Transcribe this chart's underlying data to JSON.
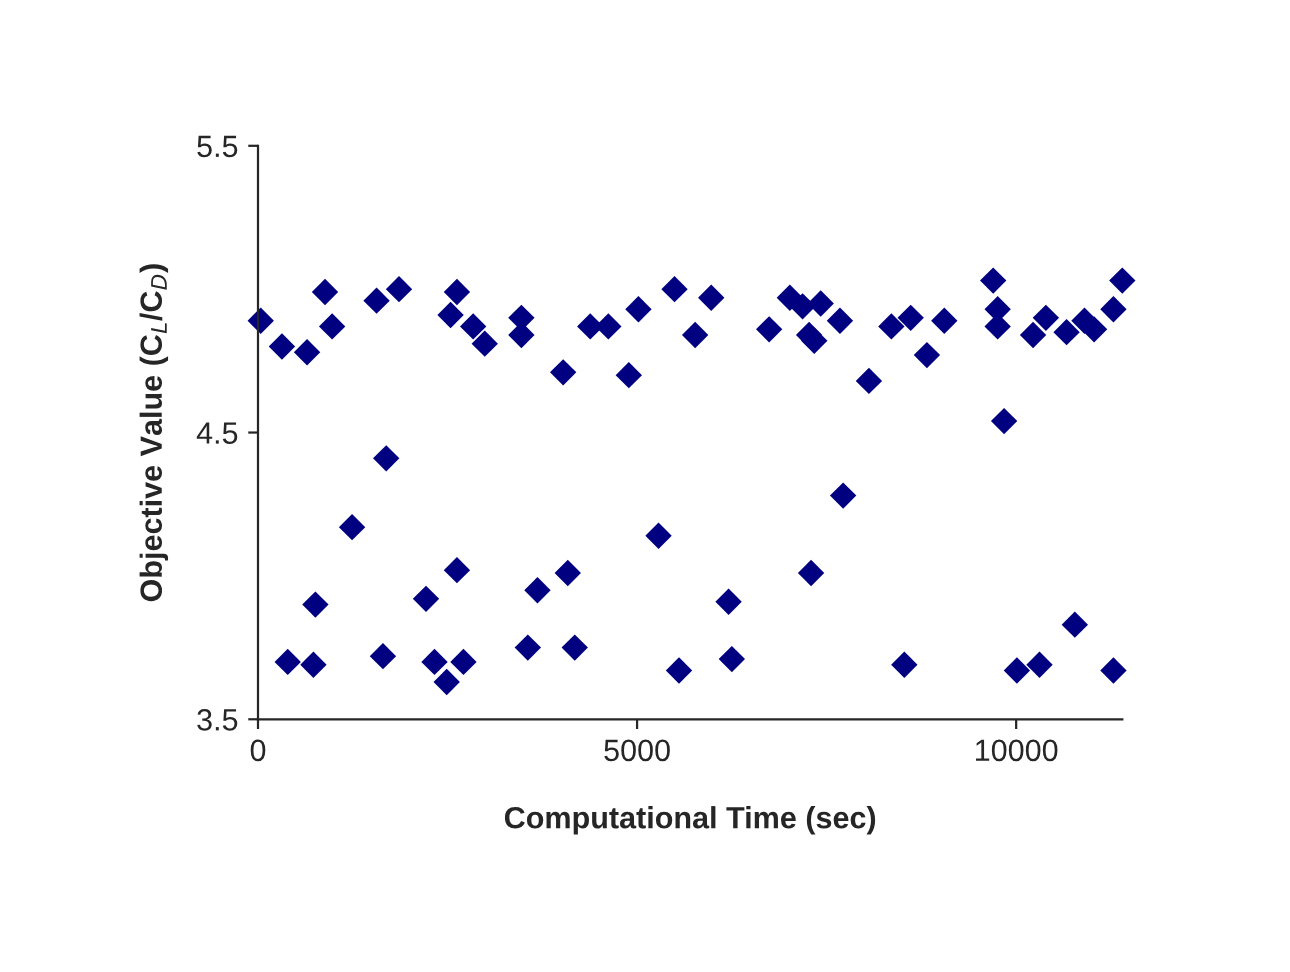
{
  "chart_data": {
    "type": "scatter",
    "xlabel": "Computational Time (sec)",
    "ylabel": "Objective Value (C$_{L}$/C$_{D}$)",
    "xlim": [
      0,
      11400
    ],
    "xticks": [
      0,
      5000,
      10000
    ],
    "ylim": [
      3.5,
      5.5
    ],
    "yticks": [
      3.5,
      4.5,
      5.5
    ],
    "grid": false,
    "legend": false,
    "marker": "diamond",
    "series": [
      {
        "color": "#000080",
        "x": [
          36,
          316,
          647,
          884,
          978,
          1564,
          1860,
          1691,
          1241,
          757,
          392,
          731,
          1648,
          2216,
          2624,
          2328,
          2710,
          2489,
          2624,
          2540,
          2838,
          2991,
          3474,
          3474,
          4025,
          3686,
          4086,
          3559,
          4178,
          4382,
          4621,
          4891,
          5018,
          5494,
          5283,
          5553,
          5978,
          5766,
          6207,
          6250,
          6742,
          7015,
          7183,
          7422,
          7269,
          7337,
          7676,
          7718,
          7295,
          8058,
          8354,
          8609,
          8823,
          9052,
          8525,
          9697,
          9756,
          9756,
          9841,
          10010,
          10308,
          10223,
          10392,
          10665,
          10901,
          11028,
          10774,
          11283,
          11283,
          11400
        ],
        "values": [
          4.89,
          4.8,
          4.78,
          4.99,
          4.87,
          4.96,
          5.0,
          4.41,
          4.17,
          3.9,
          3.7,
          3.69,
          3.72,
          3.92,
          4.02,
          3.7,
          3.7,
          3.63,
          4.99,
          4.91,
          4.87,
          4.81,
          4.9,
          4.84,
          4.71,
          3.95,
          4.01,
          3.75,
          3.75,
          4.87,
          4.87,
          4.7,
          4.93,
          5.0,
          4.14,
          3.67,
          4.97,
          4.84,
          3.91,
          3.71,
          4.86,
          4.97,
          4.94,
          4.95,
          4.84,
          4.82,
          4.89,
          4.28,
          4.01,
          4.68,
          4.87,
          4.9,
          4.77,
          4.89,
          3.69,
          5.03,
          4.93,
          4.87,
          4.54,
          3.67,
          3.69,
          4.84,
          4.9,
          4.85,
          4.89,
          4.86,
          3.83,
          3.67,
          4.93,
          5.03
        ]
      }
    ]
  }
}
